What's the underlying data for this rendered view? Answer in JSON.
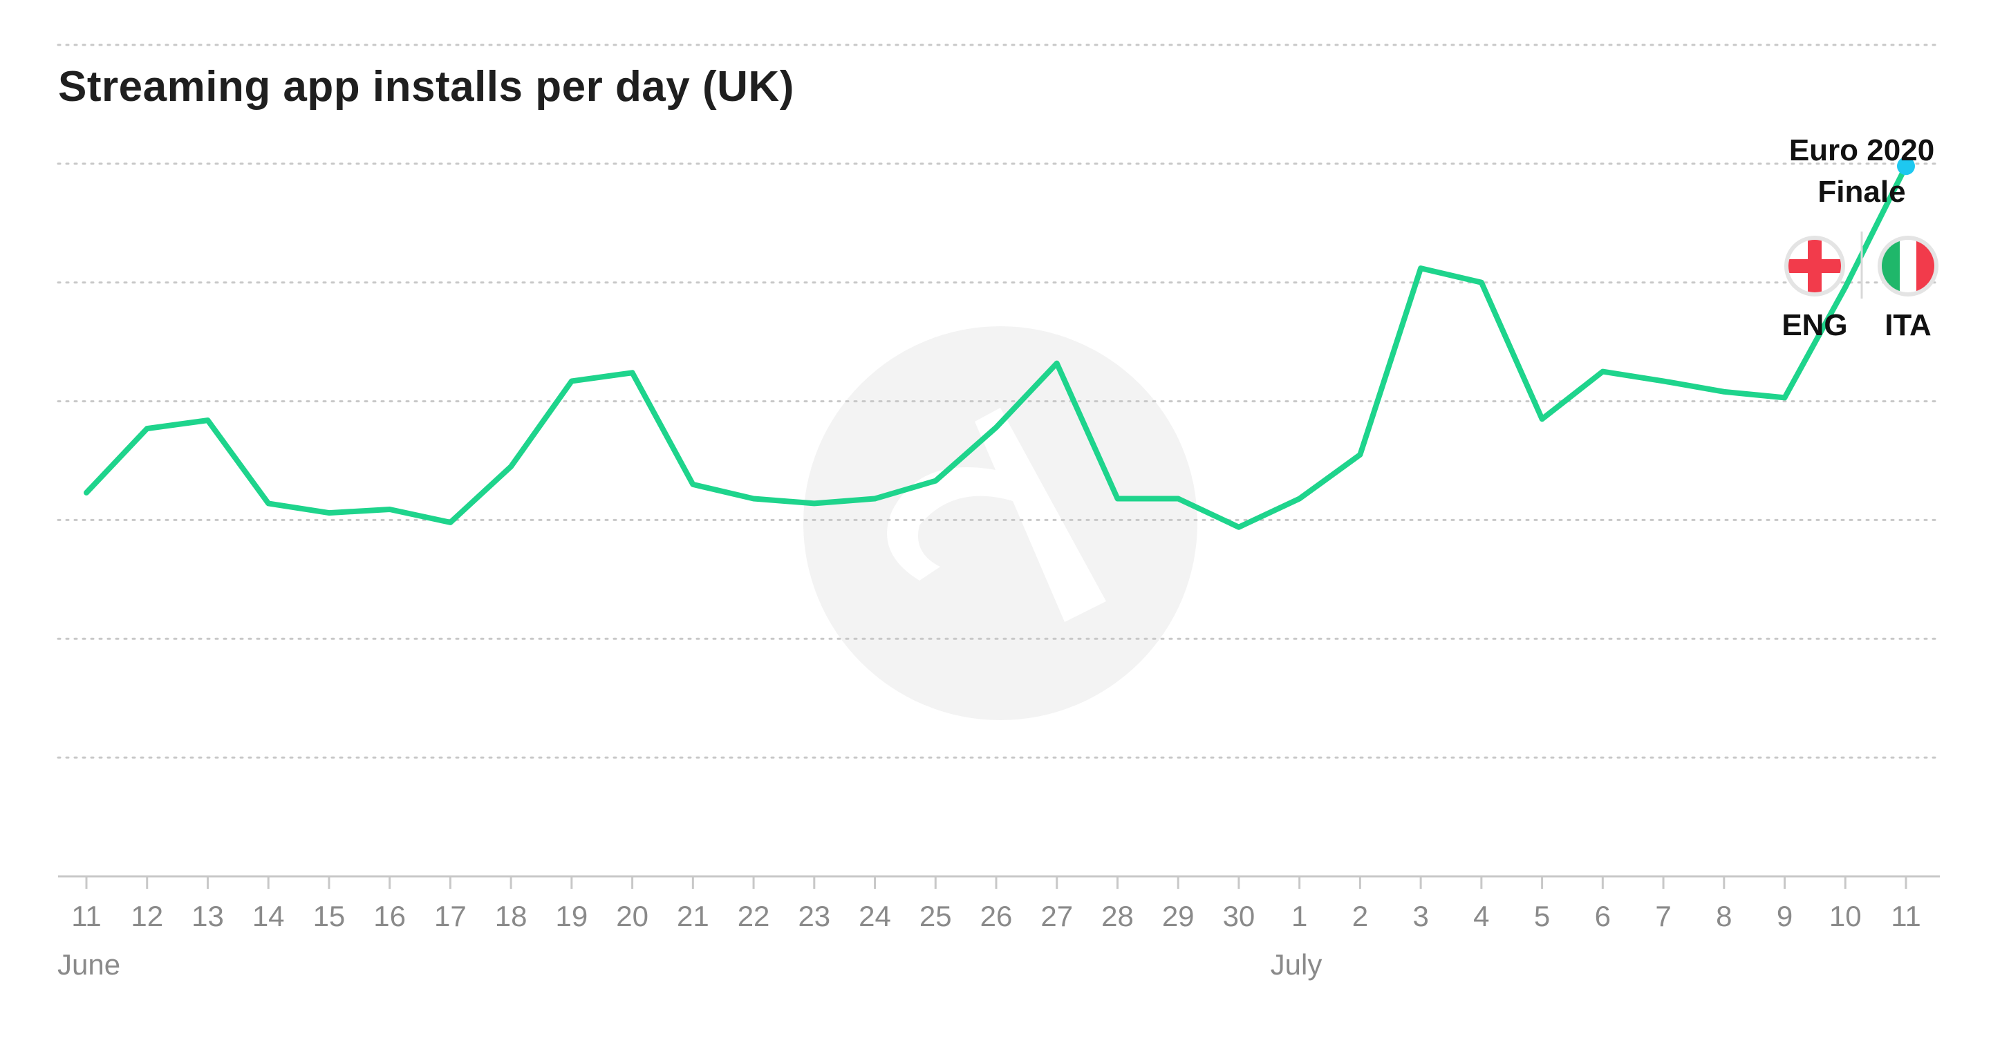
{
  "chart_data": {
    "type": "line",
    "title": "Streaming app installs per day (UK)",
    "xlabel": "",
    "ylabel": "",
    "grid": true,
    "ylim": [
      0,
      7
    ],
    "x": [
      "11",
      "12",
      "13",
      "14",
      "15",
      "16",
      "17",
      "18",
      "19",
      "20",
      "21",
      "22",
      "23",
      "24",
      "25",
      "26",
      "27",
      "28",
      "29",
      "30",
      "1",
      "2",
      "3",
      "4",
      "5",
      "6",
      "7",
      "8",
      "9",
      "10",
      "11"
    ],
    "months": [
      {
        "label": "June",
        "index": 0
      },
      {
        "label": "July",
        "index": 20
      }
    ],
    "series": [
      {
        "name": "",
        "color": "#1ed48c",
        "values": [
          3.23,
          3.77,
          3.84,
          3.14,
          3.06,
          3.09,
          2.98,
          3.45,
          4.17,
          4.24,
          3.3,
          3.18,
          3.14,
          3.18,
          3.33,
          3.78,
          4.32,
          3.18,
          3.18,
          2.94,
          3.18,
          3.55,
          5.12,
          5.0,
          3.85,
          4.25,
          4.17,
          4.08,
          4.03,
          4.96,
          5.98
        ]
      }
    ],
    "highlight": {
      "index": 30,
      "color": "#1ec8f0"
    },
    "annotation": {
      "line1": "Euro 2020",
      "line2": "Finale",
      "team_left": "ENG",
      "team_right": "ITA"
    }
  },
  "colors": {
    "line": "#1ed48c",
    "highlight": "#1ec8f0",
    "grid": "#c8c8c8",
    "axis": "#c8c8c8",
    "watermark": "#f3f3f3"
  }
}
